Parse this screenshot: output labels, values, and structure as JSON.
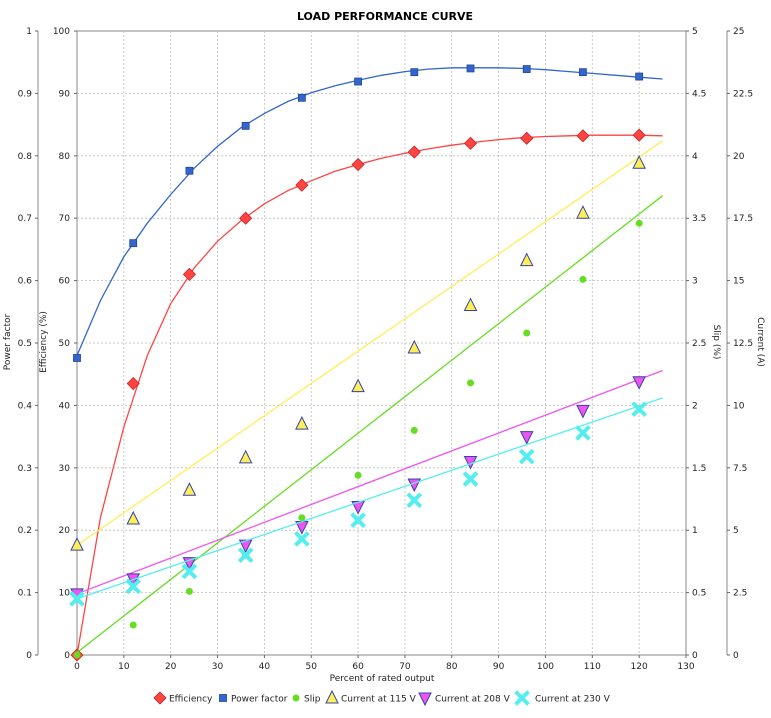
{
  "chart_data": {
    "type": "scatter",
    "title": "LOAD PERFORMANCE CURVE",
    "xlabel": "Percent of rated output",
    "xlim": [
      0,
      130
    ],
    "xticks": [
      0,
      10,
      20,
      30,
      40,
      50,
      60,
      70,
      80,
      90,
      100,
      110,
      120,
      130
    ],
    "grid": true,
    "legend_position": "bottom",
    "axes": {
      "power_factor": {
        "label": "Power factor",
        "side": "left",
        "lim": [
          0,
          1
        ],
        "ticks": [
          "0",
          "0.1",
          "0.2",
          "0.3",
          "0.4",
          "0.5",
          "0.6",
          "0.7",
          "0.8",
          "0.9",
          "1"
        ]
      },
      "efficiency": {
        "label": "Efficiency (%)",
        "side": "left",
        "lim": [
          0,
          100
        ],
        "ticks": [
          "0",
          "10",
          "20",
          "30",
          "40",
          "50",
          "60",
          "70",
          "80",
          "90",
          "100"
        ]
      },
      "slip": {
        "label": "Slip (%)",
        "side": "right",
        "lim": [
          0,
          5
        ],
        "ticks": [
          "0",
          "0.5",
          "1",
          "1.5",
          "2",
          "2.5",
          "3",
          "3.5",
          "4",
          "4.5",
          "5"
        ]
      },
      "current": {
        "label": "Current (A)",
        "side": "right",
        "lim": [
          0,
          25
        ],
        "ticks": [
          "0",
          "2.5",
          "5",
          "7.5",
          "10",
          "12.5",
          "15",
          "17.5",
          "20",
          "22.5",
          "25"
        ]
      }
    },
    "series": [
      {
        "name": "Efficiency",
        "axis": "efficiency",
        "color": "#ff4444",
        "marker": "diamond",
        "x": [
          0,
          12,
          24,
          36,
          48,
          60,
          72,
          84,
          96,
          108,
          120
        ],
        "y": [
          0,
          43.5,
          61,
          70,
          75.3,
          78.6,
          80.6,
          82,
          82.8,
          83.2,
          83.3
        ],
        "curve": {
          "x": [
            0,
            5,
            10,
            15,
            20,
            25,
            30,
            35,
            40,
            45,
            50,
            55,
            60,
            65,
            70,
            75,
            80,
            85,
            90,
            95,
            100,
            105,
            110,
            115,
            120,
            125
          ],
          "y": [
            0,
            22,
            36.5,
            48,
            56.3,
            62,
            66.3,
            69.6,
            72.3,
            74.4,
            76,
            77.5,
            78.6,
            79.6,
            80.4,
            81.1,
            81.7,
            82.2,
            82.6,
            82.9,
            83.1,
            83.2,
            83.3,
            83.3,
            83.3,
            83.2
          ]
        }
      },
      {
        "name": "Power factor",
        "axis": "power_factor",
        "color": "#3366cc",
        "marker": "square",
        "x": [
          0,
          12,
          24,
          36,
          48,
          60,
          72,
          84,
          96,
          108,
          120
        ],
        "y": [
          0.476,
          0.66,
          0.776,
          0.848,
          0.893,
          0.919,
          0.934,
          0.94,
          0.939,
          0.934,
          0.927
        ],
        "curve": {
          "x": [
            0,
            5,
            10,
            15,
            20,
            25,
            30,
            35,
            40,
            45,
            50,
            55,
            60,
            65,
            70,
            75,
            80,
            85,
            90,
            95,
            100,
            105,
            110,
            115,
            120,
            125
          ],
          "y": [
            0.48,
            0.568,
            0.638,
            0.692,
            0.738,
            0.78,
            0.815,
            0.845,
            0.868,
            0.887,
            0.901,
            0.912,
            0.921,
            0.929,
            0.935,
            0.939,
            0.941,
            0.941,
            0.941,
            0.94,
            0.938,
            0.935,
            0.932,
            0.929,
            0.926,
            0.923
          ]
        }
      },
      {
        "name": "Slip",
        "axis": "slip",
        "color": "#66dd22",
        "marker": "circle",
        "x": [
          0,
          12,
          24,
          36,
          48,
          60,
          72,
          84,
          96,
          108,
          120
        ],
        "y": [
          0,
          0.24,
          0.51,
          0.8,
          1.1,
          1.44,
          1.8,
          2.18,
          2.58,
          3.01,
          3.46
        ],
        "curve": {
          "x": [
            0,
            125
          ],
          "y": [
            0.02,
            3.68
          ]
        }
      },
      {
        "name": "Current at 115 V",
        "axis": "current",
        "color": "#ffee55",
        "marker": "triangle-up",
        "x": [
          0,
          12,
          24,
          36,
          48,
          60,
          72,
          84,
          96,
          108,
          120
        ],
        "y": [
          4.4,
          5.45,
          6.6,
          7.9,
          9.25,
          10.75,
          12.3,
          14,
          15.8,
          17.7,
          19.7
        ],
        "curve": {
          "x": [
            0,
            125
          ],
          "y": [
            4.4,
            20.6
          ]
        }
      },
      {
        "name": "Current at 208 V",
        "axis": "current",
        "color": "#ee55ee",
        "marker": "triangle-down",
        "x": [
          0,
          12,
          24,
          36,
          48,
          60,
          72,
          84,
          96,
          108,
          120
        ],
        "y": [
          2.45,
          3.05,
          3.7,
          4.4,
          5.15,
          5.95,
          6.85,
          7.75,
          8.75,
          9.8,
          10.95
        ],
        "curve": {
          "x": [
            0,
            125
          ],
          "y": [
            2.45,
            11.4
          ]
        }
      },
      {
        "name": "Current at 230 V",
        "axis": "current",
        "color": "#55eeee",
        "marker": "cross",
        "x": [
          0,
          12,
          24,
          36,
          48,
          60,
          72,
          84,
          96,
          108,
          120
        ],
        "y": [
          2.25,
          2.75,
          3.35,
          4,
          4.65,
          5.4,
          6.2,
          7.05,
          7.95,
          8.9,
          9.85
        ],
        "curve": {
          "x": [
            0,
            125
          ],
          "y": [
            2.25,
            10.3
          ]
        }
      }
    ]
  }
}
